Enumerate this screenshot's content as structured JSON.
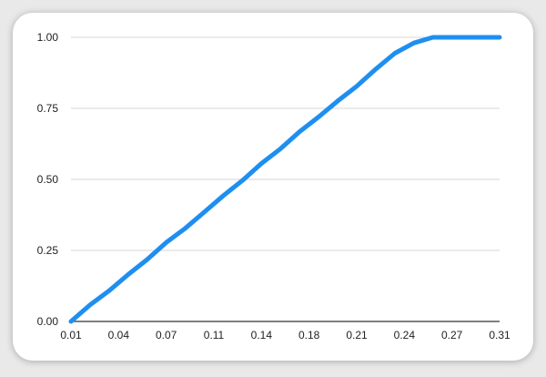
{
  "chart_data": {
    "type": "line",
    "title": "",
    "xlabel": "",
    "ylabel": "",
    "x_tick_labels": [
      "0.01",
      "0.04",
      "0.07",
      "0.11",
      "0.14",
      "0.18",
      "0.21",
      "0.24",
      "0.27",
      "0.31"
    ],
    "y_tick_labels": [
      "0.00",
      "0.25",
      "0.50",
      "0.75",
      "1.00"
    ],
    "xlim": [
      0.01,
      0.31
    ],
    "ylim": [
      0,
      1
    ],
    "grid": true,
    "legend": "none",
    "series": [
      {
        "color": "#1e8ff0",
        "x": [
          0.01,
          0.0233,
          0.0367,
          0.05,
          0.0633,
          0.0767,
          0.09,
          0.1033,
          0.1167,
          0.13,
          0.1433,
          0.1567,
          0.17,
          0.1833,
          0.1967,
          0.21,
          0.2233,
          0.2367,
          0.25,
          0.2633,
          0.2767,
          0.29,
          0.3033,
          0.31
        ],
        "y": [
          0.0,
          0.058,
          0.108,
          0.165,
          0.218,
          0.278,
          0.328,
          0.385,
          0.443,
          0.496,
          0.556,
          0.608,
          0.668,
          0.72,
          0.776,
          0.828,
          0.888,
          0.944,
          0.98,
          1.0,
          1.0,
          1.0,
          1.0,
          1.0
        ]
      }
    ]
  }
}
